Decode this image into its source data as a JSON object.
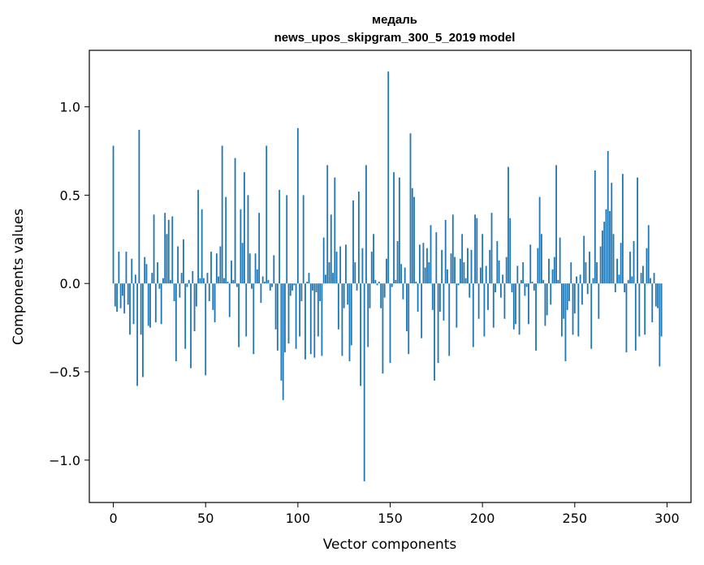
{
  "chart_data": {
    "type": "bar",
    "title": "медаль",
    "subtitle": "news_upos_skipgram_300_5_2019 model",
    "xlabel": "Vector components",
    "ylabel": "Components values",
    "xlim": [
      -13,
      313
    ],
    "ylim": [
      -1.24,
      1.32
    ],
    "xticks": [
      0,
      50,
      100,
      150,
      200,
      250,
      300
    ],
    "xtick_labels": [
      "0",
      "50",
      "100",
      "150",
      "200",
      "250",
      "300"
    ],
    "yticks": [
      -1.0,
      -0.5,
      0.0,
      0.5,
      1.0
    ],
    "ytick_labels": [
      "−1.0",
      "−0.5",
      "0.0",
      "0.5",
      "1.0"
    ],
    "bar_color": "#1f77b4",
    "grid": false,
    "legend": "none",
    "values": [
      0.78,
      -0.13,
      -0.16,
      0.18,
      -0.14,
      -0.07,
      -0.17,
      0.18,
      -0.12,
      -0.29,
      0.14,
      -0.23,
      0.05,
      -0.58,
      0.87,
      -0.29,
      -0.53,
      0.15,
      0.11,
      -0.24,
      -0.25,
      0.06,
      0.39,
      -0.22,
      0.12,
      -0.03,
      -0.23,
      0.03,
      0.4,
      0.28,
      0.36,
      0.02,
      0.38,
      -0.1,
      -0.44,
      0.21,
      -0.08,
      0.06,
      0.25,
      -0.37,
      -0.02,
      0.02,
      -0.48,
      0.07,
      -0.27,
      -0.13,
      0.53,
      0.03,
      0.42,
      0.03,
      -0.52,
      0.06,
      -0.1,
      0.18,
      -0.15,
      -0.22,
      0.17,
      0.04,
      0.21,
      0.78,
      0.03,
      0.49,
      0.01,
      -0.19,
      0.13,
      0.02,
      0.71,
      -0.02,
      -0.36,
      0.42,
      0.23,
      0.63,
      -0.3,
      0.5,
      0.17,
      -0.03,
      -0.4,
      0.17,
      0.08,
      0.4,
      -0.11,
      0.04,
      0.01,
      0.78,
      0.02,
      -0.04,
      -0.02,
      0.16,
      -0.26,
      -0.38,
      0.53,
      -0.55,
      -0.66,
      -0.39,
      0.5,
      -0.34,
      -0.07,
      -0.04,
      -0.01,
      -0.37,
      0.88,
      -0.3,
      -0.1,
      0.5,
      -0.43,
      0.01,
      0.06,
      -0.4,
      -0.04,
      -0.42,
      -0.05,
      -0.3,
      -0.1,
      -0.41,
      0.26,
      0.05,
      0.67,
      0.12,
      0.39,
      0.06,
      0.6,
      0.18,
      -0.26,
      0.21,
      -0.41,
      -0.14,
      0.22,
      -0.12,
      -0.44,
      -0.35,
      0.47,
      0.12,
      -0.04,
      0.52,
      -0.58,
      0.2,
      -1.12,
      0.67,
      -0.36,
      -0.14,
      0.18,
      0.28,
      0.02,
      -0.01,
      0.01,
      -0.14,
      -0.51,
      -0.08,
      0.14,
      1.2,
      -0.45,
      -0.02,
      0.63,
      0.02,
      0.24,
      0.6,
      0.11,
      -0.09,
      0.09,
      -0.27,
      -0.4,
      0.85,
      0.54,
      0.49,
      0.01,
      -0.16,
      0.22,
      -0.31,
      0.23,
      0.09,
      0.2,
      0.12,
      0.33,
      -0.15,
      -0.55,
      0.29,
      -0.45,
      -0.16,
      0.19,
      -0.21,
      0.36,
      0.08,
      -0.41,
      0.17,
      0.39,
      0.15,
      -0.25,
      -0.01,
      0.14,
      0.28,
      0.12,
      0.03,
      0.2,
      -0.08,
      0.19,
      -0.36,
      0.39,
      0.37,
      -0.2,
      0.09,
      0.28,
      -0.3,
      0.1,
      -0.15,
      0.19,
      0.4,
      -0.25,
      -0.05,
      0.24,
      0.13,
      -0.08,
      0.05,
      -0.2,
      0.15,
      0.66,
      0.37,
      -0.05,
      -0.26,
      -0.23,
      0.1,
      -0.29,
      0.02,
      0.12,
      -0.07,
      -0.02,
      -0.23,
      0.22,
      0.01,
      -0.04,
      -0.38,
      0.2,
      0.49,
      0.28,
      0.02,
      -0.24,
      -0.18,
      0.14,
      -0.12,
      0.08,
      0.15,
      0.67,
      0.02,
      0.26,
      -0.3,
      -0.2,
      -0.44,
      -0.15,
      -0.1,
      0.12,
      -0.29,
      -0.17,
      0.04,
      -0.3,
      0.05,
      -0.12,
      0.27,
      0.12,
      -0.06,
      0.18,
      -0.37,
      0.03,
      0.64,
      0.12,
      -0.2,
      0.21,
      0.3,
      0.35,
      0.42,
      0.75,
      0.41,
      0.57,
      0.28,
      -0.05,
      0.14,
      0.05,
      0.23,
      0.62,
      -0.05,
      -0.39,
      0.02,
      0.18,
      0.04,
      0.24,
      -0.38,
      0.6,
      -0.3,
      0.06,
      0.1,
      -0.29,
      0.2,
      0.33,
      0.03,
      -0.22,
      0.06,
      -0.13,
      -0.14,
      -0.47,
      -0.3
    ]
  }
}
